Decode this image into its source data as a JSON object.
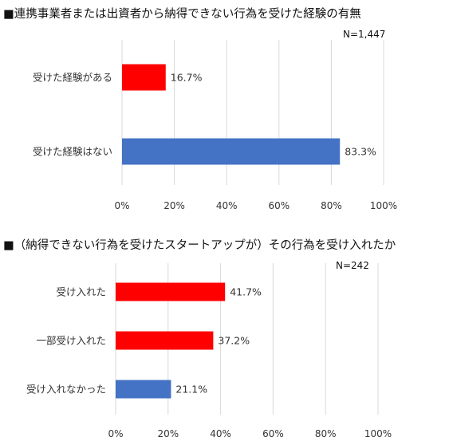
{
  "chart_data": [
    {
      "type": "bar",
      "orientation": "horizontal",
      "title": "■連携事業者または出資者から納得できない行為を受けた経験の有無",
      "n_label": "N=1,447",
      "categories": [
        "受けた経験がある",
        "受けた経験はない"
      ],
      "values": [
        16.7,
        83.3
      ],
      "data_labels": [
        "16.7%",
        "83.3%"
      ],
      "bar_colors": [
        "#ff0000",
        "#4472c4"
      ],
      "xlim": [
        0,
        100
      ],
      "x_ticks": [
        "0%",
        "20%",
        "40%",
        "60%",
        "80%",
        "100%"
      ],
      "grid": true,
      "legend": "none"
    },
    {
      "type": "bar",
      "orientation": "horizontal",
      "title": "■（納得できない行為を受けたスタートアップが）その行為を受け入れたか",
      "n_label": "N=242",
      "categories": [
        "受け入れた",
        "一部受け入れた",
        "受け入れなかった"
      ],
      "values": [
        41.7,
        37.2,
        21.1
      ],
      "data_labels": [
        "41.7%",
        "37.2%",
        "21.1%"
      ],
      "bar_colors": [
        "#ff0000",
        "#ff0000",
        "#4472c4"
      ],
      "xlim": [
        0,
        100
      ],
      "x_ticks": [
        "0%",
        "20%",
        "40%",
        "60%",
        "80%",
        "100%"
      ],
      "grid": true,
      "legend": "none"
    }
  ]
}
